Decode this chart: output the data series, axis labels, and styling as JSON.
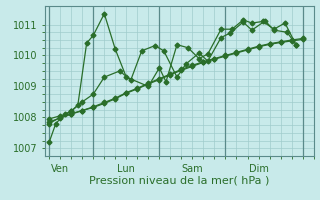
{
  "background_color": "#c8eaea",
  "grid_color": "#a0cccc",
  "line_color": "#2a6e2a",
  "vline_color": "#5a8a8a",
  "ylabel_ticks": [
    1007,
    1008,
    1009,
    1010,
    1011
  ],
  "xlabel": "Pression niveau de la mer( hPa )",
  "xlabel_fontsize": 8,
  "tick_fontsize": 7,
  "day_labels": [
    "Ven",
    "Lun",
    "Sam",
    "Dim"
  ],
  "day_positions": [
    0.5,
    3.5,
    6.5,
    9.5
  ],
  "vline_positions": [
    0,
    2.0,
    5.0,
    8.0,
    11.5
  ],
  "series1_x": [
    0.0,
    0.3,
    0.7,
    1.0,
    1.3,
    1.7,
    2.0,
    2.5,
    3.0,
    3.5,
    4.5,
    5.0,
    5.3,
    5.8,
    6.3,
    6.8,
    7.2,
    7.8,
    8.3,
    8.8,
    9.2,
    9.7,
    10.2,
    10.7,
    11.2
  ],
  "series1_y": [
    1007.2,
    1007.8,
    1008.1,
    1008.2,
    1008.4,
    1010.4,
    1010.65,
    1011.35,
    1010.2,
    1009.3,
    1009.0,
    1009.6,
    1009.15,
    1010.35,
    1010.25,
    1009.9,
    1010.05,
    1010.85,
    1010.85,
    1011.15,
    1011.05,
    1011.1,
    1010.85,
    1011.05,
    1010.35
  ],
  "series2_x": [
    0.0,
    0.5,
    1.0,
    1.5,
    2.0,
    2.5,
    3.0,
    3.5,
    4.0,
    4.5,
    5.0,
    5.5,
    6.0,
    6.5,
    7.0,
    7.5,
    8.0,
    8.5,
    9.0,
    9.5,
    10.0,
    10.5,
    11.0,
    11.5
  ],
  "series2_y": [
    1007.95,
    1008.05,
    1008.12,
    1008.22,
    1008.32,
    1008.45,
    1008.6,
    1008.78,
    1008.92,
    1009.08,
    1009.22,
    1009.38,
    1009.52,
    1009.65,
    1009.78,
    1009.88,
    1009.98,
    1010.08,
    1010.18,
    1010.28,
    1010.36,
    1010.42,
    1010.47,
    1010.52
  ],
  "series3_x": [
    0.0,
    0.5,
    1.0,
    1.5,
    2.0,
    2.5,
    3.0,
    3.5,
    4.0,
    4.5,
    5.0,
    5.5,
    6.0,
    6.5,
    7.0,
    7.5,
    8.0,
    8.5,
    9.0,
    9.5,
    10.0,
    10.5,
    11.0,
    11.5
  ],
  "series3_y": [
    1007.85,
    1007.98,
    1008.1,
    1008.22,
    1008.34,
    1008.48,
    1008.62,
    1008.8,
    1008.94,
    1009.1,
    1009.25,
    1009.4,
    1009.55,
    1009.68,
    1009.8,
    1009.9,
    1010.0,
    1010.1,
    1010.2,
    1010.3,
    1010.38,
    1010.44,
    1010.5,
    1010.55
  ],
  "series4_x": [
    0.0,
    0.5,
    1.0,
    1.5,
    2.0,
    2.5,
    3.2,
    3.7,
    4.2,
    4.8,
    5.2,
    5.8,
    6.2,
    6.8,
    7.2,
    7.8,
    8.2,
    8.8,
    9.2,
    9.8,
    10.2,
    10.8,
    11.2
  ],
  "series4_y": [
    1007.8,
    1008.0,
    1008.2,
    1008.5,
    1008.75,
    1009.3,
    1009.5,
    1009.2,
    1010.15,
    1010.32,
    1010.15,
    1009.3,
    1009.72,
    1010.08,
    1009.82,
    1010.58,
    1010.72,
    1011.08,
    1010.82,
    1011.12,
    1010.82,
    1010.75,
    1010.35
  ],
  "ylim": [
    1006.75,
    1011.6
  ],
  "xlim": [
    -0.2,
    11.8
  ]
}
